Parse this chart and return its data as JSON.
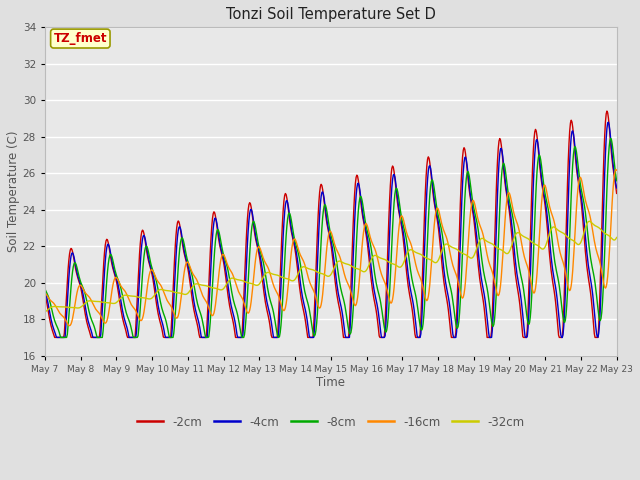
{
  "title": "Tonzi Soil Temperature Set D",
  "xlabel": "Time",
  "ylabel": "Soil Temperature (C)",
  "ylim": [
    16,
    34
  ],
  "legend_labels": [
    "-2cm",
    "-4cm",
    "-8cm",
    "-16cm",
    "-32cm"
  ],
  "legend_colors": [
    "#cc0000",
    "#0000cc",
    "#00aa00",
    "#ff8800",
    "#cccc00"
  ],
  "annotation_text": "TZ_fmet",
  "annotation_bg": "#ffffcc",
  "annotation_border": "#999900",
  "annotation_text_color": "#cc0000",
  "fig_bg_color": "#e0e0e0",
  "plot_bg_color": "#e8e8e8",
  "grid_color": "#ffffff",
  "tick_color": "#555555"
}
